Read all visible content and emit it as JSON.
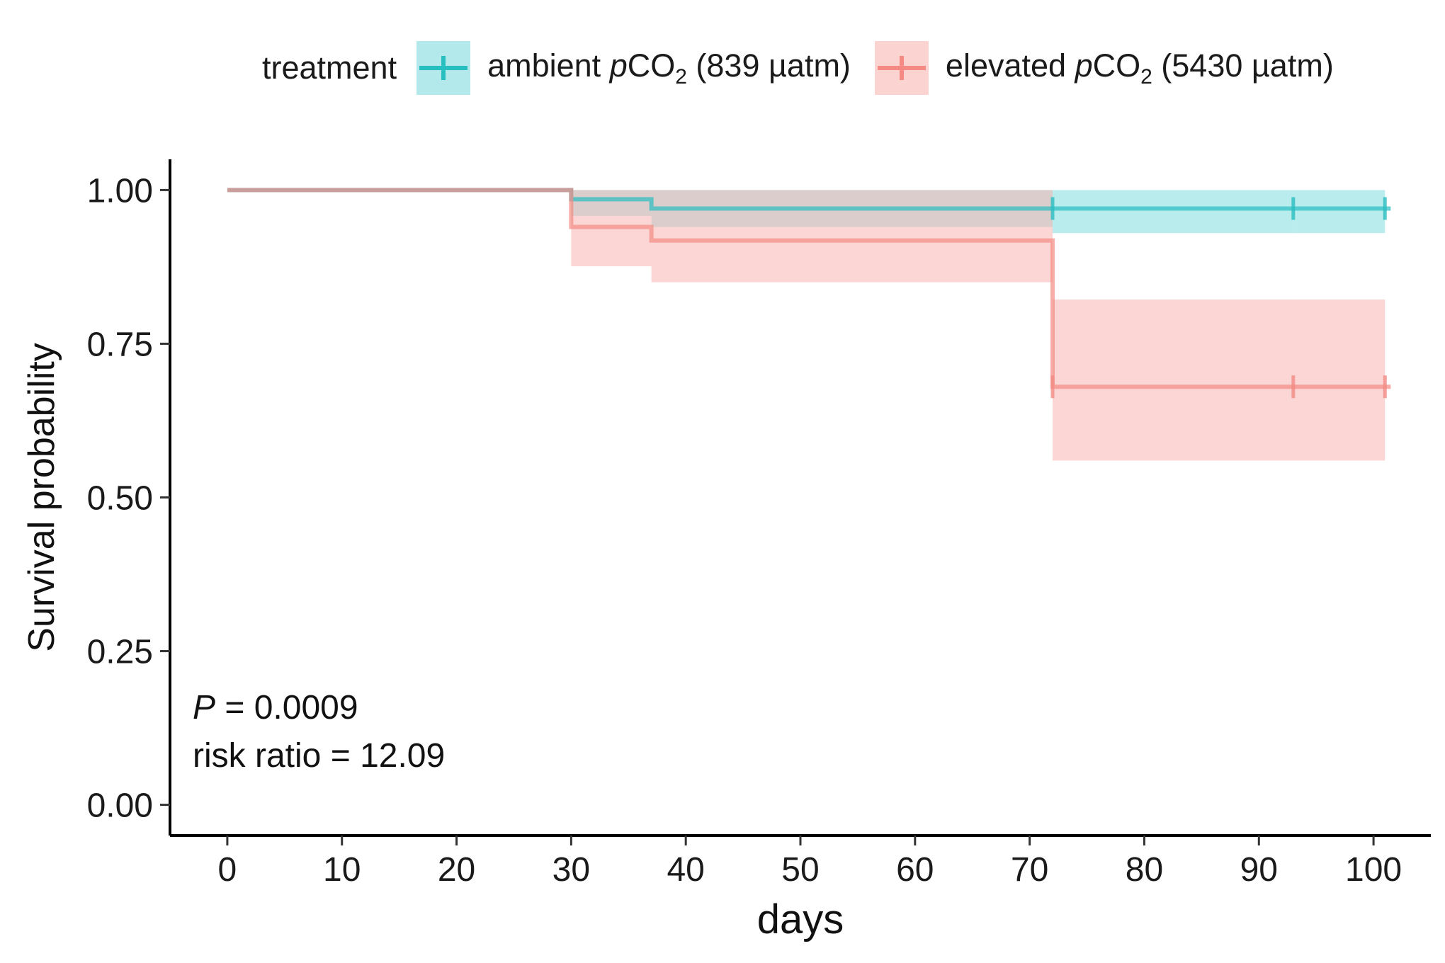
{
  "chart_data": {
    "type": "line",
    "subtype": "kaplan-meier",
    "title": "",
    "xlabel": "days",
    "ylabel": "Survival probability",
    "xlim": [
      -5,
      105
    ],
    "ylim": [
      -0.05,
      1.05
    ],
    "x_ticks": [
      0,
      10,
      20,
      30,
      40,
      50,
      60,
      70,
      80,
      90,
      100
    ],
    "y_ticks": [
      0.0,
      0.25,
      0.5,
      0.75,
      1.0
    ],
    "y_tick_labels": [
      "0.00",
      "0.25",
      "0.50",
      "0.75",
      "1.00"
    ],
    "grid": false,
    "legend": {
      "position": "top",
      "title": "treatment",
      "entries": [
        {
          "prefix": "ambient ",
          "italic": "p",
          "main": "CO",
          "sub": "2",
          "suffix": " (839 µatm)"
        },
        {
          "prefix": "elevated ",
          "italic": "p",
          "main": "CO",
          "sub": "2",
          "suffix": " (5430 µatm)"
        }
      ]
    },
    "series": [
      {
        "name": "ambient pCO2 (839 µatm)",
        "color": "#29BEC0",
        "band_color": "#7FDDDF",
        "x": [
          0,
          30,
          37,
          72,
          93,
          101
        ],
        "y": [
          1.0,
          0.985,
          0.97,
          0.97,
          0.97,
          0.97
        ],
        "lower": [
          1.0,
          0.958,
          0.94,
          0.93,
          0.93,
          0.93
        ],
        "upper": [
          1.0,
          1.0,
          1.0,
          1.0,
          1.0,
          1.0
        ],
        "censor_x": [
          72,
          93,
          101
        ],
        "end_x": 101.5
      },
      {
        "name": "elevated pCO2 (5430 µatm)",
        "color": "#F48A83",
        "band_color": "#F8B5B1",
        "x": [
          0,
          30,
          37,
          72,
          93,
          101
        ],
        "y": [
          1.0,
          0.94,
          0.918,
          0.68,
          0.68,
          0.68
        ],
        "lower": [
          1.0,
          0.876,
          0.85,
          0.56,
          0.56,
          0.56
        ],
        "upper": [
          1.0,
          1.0,
          1.0,
          0.822,
          0.822,
          0.822
        ],
        "censor_x": [
          72,
          93,
          101
        ],
        "end_x": 101.5
      }
    ],
    "annotations": {
      "p_value_label": "P",
      "p_value_rest": " = 0.0009",
      "risk_ratio": "risk ratio = 12.09"
    }
  }
}
